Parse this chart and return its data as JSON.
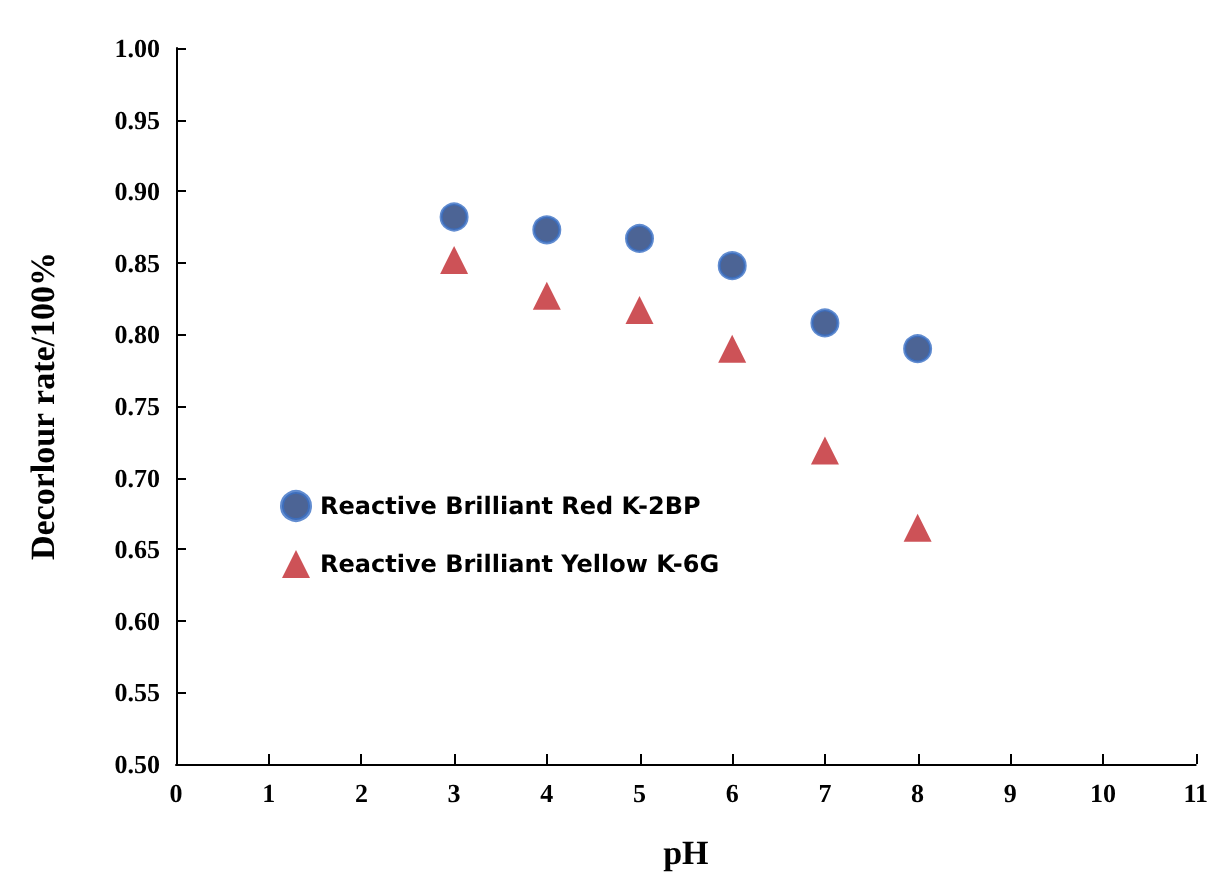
{
  "chart_data": {
    "type": "scatter",
    "xlabel": "pH",
    "ylabel": "Decorlour rate/100%",
    "x": [
      3,
      4,
      5,
      6,
      7,
      8
    ],
    "series": [
      {
        "name": "Reactive Brilliant Red K-2BP",
        "color": "#1f3d7a",
        "marker": "circle",
        "values": [
          0.882,
          0.873,
          0.867,
          0.848,
          0.808,
          0.79
        ]
      },
      {
        "name": "Reactive Brilliant Yellow K-6G",
        "color": "#c0272d",
        "marker": "triangle",
        "values": [
          0.852,
          0.827,
          0.817,
          0.79,
          0.719,
          0.665
        ]
      }
    ],
    "xlim": [
      0,
      11
    ],
    "xticks": [
      0,
      1,
      2,
      3,
      4,
      5,
      6,
      7,
      8,
      9,
      10,
      11
    ],
    "ylim": [
      0.5,
      1.0
    ],
    "yticks": [
      {
        "value": 0.5,
        "label": "0.50"
      },
      0.55,
      {
        "value": 0.6,
        "label": "0.60"
      },
      0.65,
      {
        "value": 0.7,
        "label": "0.70"
      },
      0.75,
      {
        "value": 0.8,
        "label": "0.80"
      },
      0.85,
      {
        "value": 0.9,
        "label": "0.90"
      },
      0.95,
      {
        "value": 1.0,
        "label": "1.00"
      }
    ],
    "grid": false,
    "legend": "left"
  }
}
